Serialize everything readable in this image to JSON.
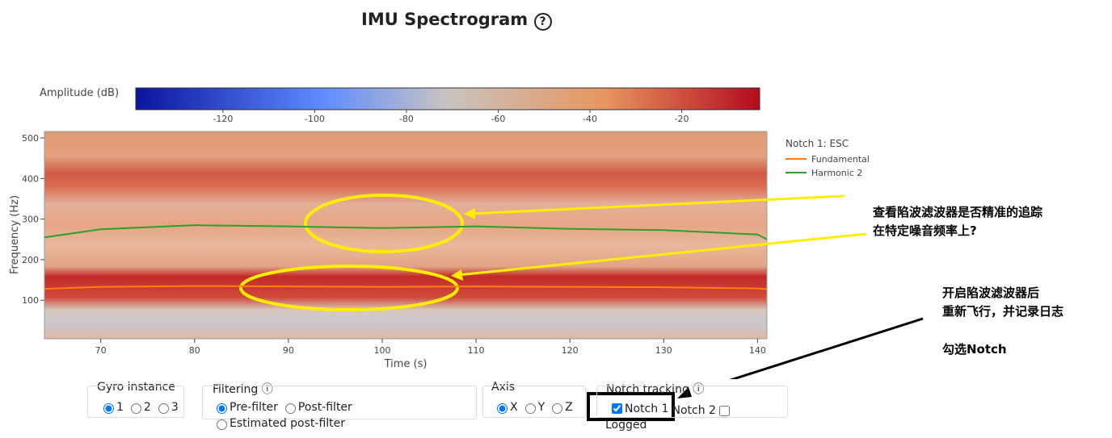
{
  "title": "IMU Spectrogram",
  "chart_data": {
    "type": "spectrogram",
    "colorbar": {
      "label": "Amplitude (dB)",
      "lim": [
        -139,
        -3
      ],
      "ticks": [
        -120,
        -100,
        -80,
        -60,
        -40,
        -20
      ]
    },
    "x_label": "Time (s)",
    "y_label": "Frequency (Hz)",
    "xlim": [
      64,
      141
    ],
    "xticks": [
      70,
      80,
      90,
      100,
      110,
      120,
      130,
      140
    ],
    "ylim": [
      5,
      516
    ],
    "yticks": [
      100,
      200,
      300,
      400,
      500
    ],
    "legend_title": "Notch 1: ESC",
    "x": [
      64,
      70,
      80,
      90,
      100,
      110,
      120,
      130,
      140,
      141
    ],
    "series": [
      {
        "name": "Fundamental",
        "color": "#ff7f0e",
        "values": [
          128,
          133,
          135,
          134,
          133,
          134,
          133,
          132,
          129,
          127
        ]
      },
      {
        "name": "Harmonic 2",
        "color": "#2ca02c",
        "values": [
          255,
          275,
          285,
          282,
          278,
          282,
          276,
          273,
          262,
          250
        ]
      }
    ]
  },
  "annotations": [
    "查看陷波滤波器是否精准的追踪",
    "在特定噪音频率上?",
    "开启陷波滤波器后",
    "重新飞行，并记录日志",
    "勾选Notch"
  ],
  "controls": {
    "gyro": {
      "label": "Gyro instance",
      "options": [
        "1",
        "2",
        "3"
      ]
    },
    "filtering": {
      "label": "Filtering",
      "options": [
        "Pre-filter",
        "Post-filter",
        "Estimated post-filter"
      ]
    },
    "axis": {
      "label": "Axis",
      "options": [
        "X",
        "Y",
        "Z"
      ]
    },
    "notch": {
      "label": "Notch tracking",
      "options": [
        "Notch 1",
        "Notch 2"
      ],
      "note": "Logged"
    }
  }
}
